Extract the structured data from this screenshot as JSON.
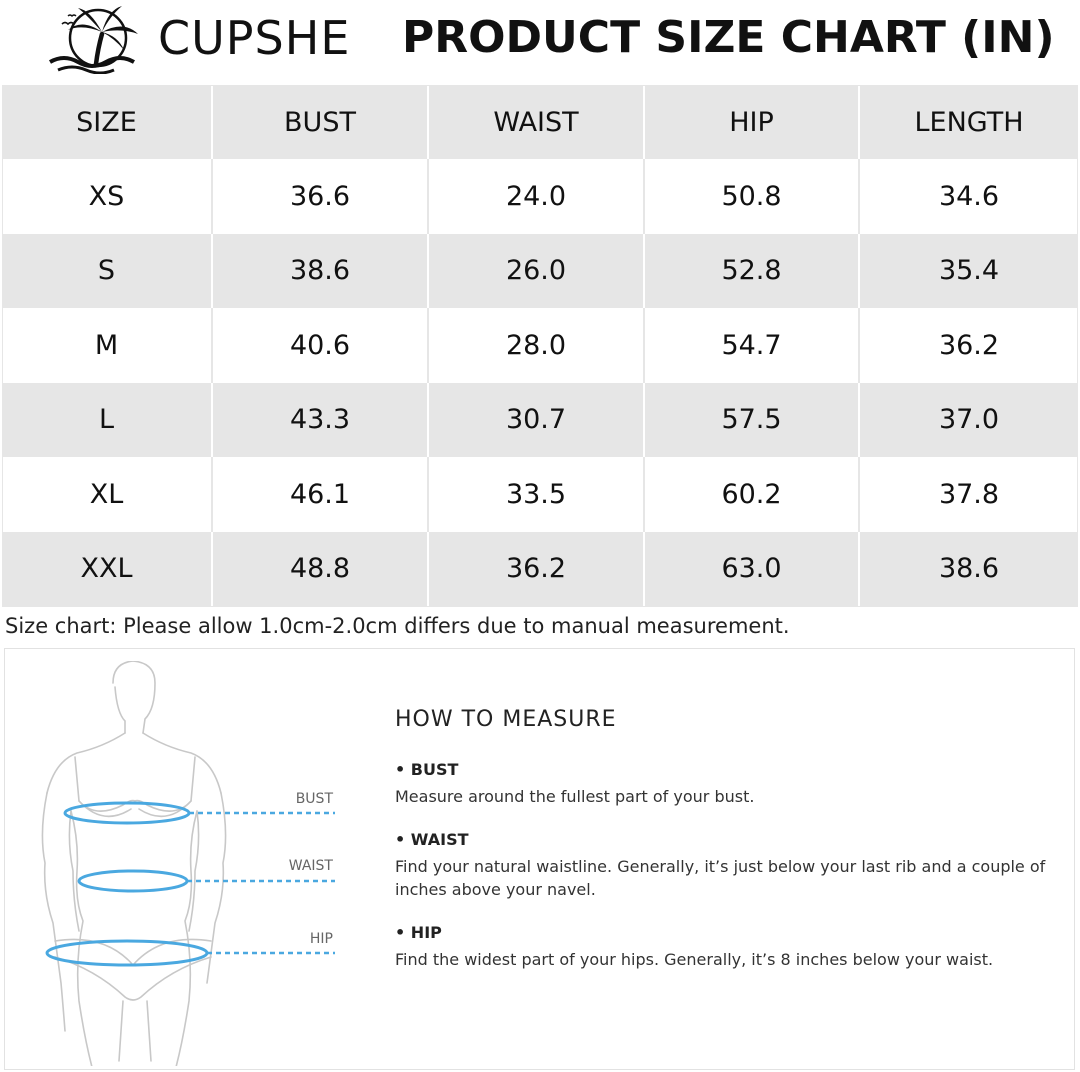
{
  "header": {
    "brand": "CUPSHE",
    "title": "PRODUCT SIZE CHART (IN)",
    "logo_icon": "palm-tree-logo-icon"
  },
  "size_table": {
    "columns": [
      "SIZE",
      "BUST",
      "WAIST",
      "HIP",
      "LENGTH"
    ],
    "rows": [
      [
        "XS",
        "36.6",
        "24.0",
        "50.8",
        "34.6"
      ],
      [
        "S",
        "38.6",
        "26.0",
        "52.8",
        "35.4"
      ],
      [
        "M",
        "40.6",
        "28.0",
        "54.7",
        "36.2"
      ],
      [
        "L",
        "43.3",
        "30.7",
        "57.5",
        "37.0"
      ],
      [
        "XL",
        "46.1",
        "33.5",
        "60.2",
        "37.8"
      ],
      [
        "XXL",
        "48.8",
        "36.2",
        "63.0",
        "38.6"
      ]
    ]
  },
  "note": "Size chart: Please allow 1.0cm-2.0cm differs due to manual measurement.",
  "measure_guide": {
    "figure_labels": {
      "bust": "BUST",
      "waist": "WAIST",
      "hip": "HIP"
    },
    "title": "HOW TO MEASURE",
    "items": [
      {
        "label": "• BUST",
        "desc": "Measure around the fullest part of your bust."
      },
      {
        "label": "• WAIST",
        "desc": "Find your natural waistline. Generally, it’s just below your last rib and a couple of inches above your navel."
      },
      {
        "label": "• HIP",
        "desc": "Find the widest part of your hips. Generally, it’s 8 inches below your waist."
      }
    ]
  },
  "colors": {
    "header_row_bg": "#e6e6e6",
    "stripe_bg": "#e6e6e6",
    "measure_line": "#4aa8e0",
    "figure_outline": "#c8c8c8"
  }
}
